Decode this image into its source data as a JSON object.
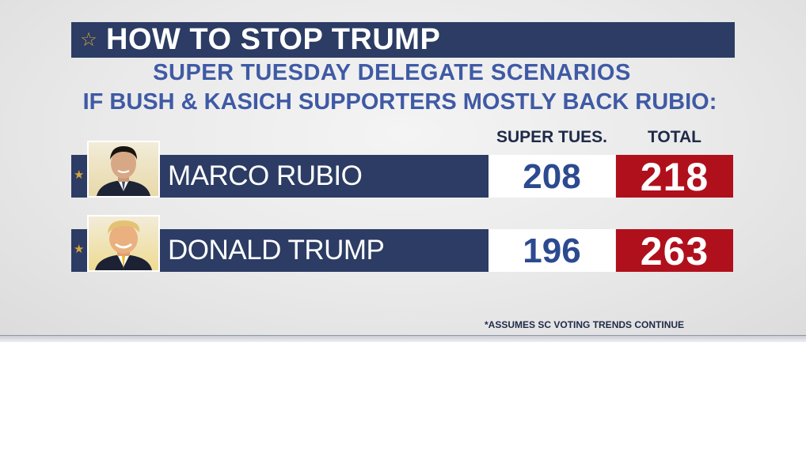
{
  "graphic": {
    "title": "HOW TO STOP TRUMP",
    "title_icon": "star-outline-icon",
    "subtitle": "SUPER TUESDAY DELEGATE SCENARIOS",
    "scenario": "IF BUSH & KASICH SUPPORTERS MOSTLY BACK RUBIO:",
    "columns": {
      "super_tues": "SUPER TUES.",
      "total": "TOTAL"
    },
    "candidates": [
      {
        "name": "MARCO RUBIO",
        "super_tues": "208",
        "total": "218"
      },
      {
        "name": "DONALD TRUMP",
        "super_tues": "196",
        "total": "263"
      }
    ],
    "footnote": "*ASSUMES SC VOTING TRENDS CONTINUE",
    "colors": {
      "navy": "#2c3c64",
      "subtitle_blue": "#3f5aa5",
      "red": "#b0101c",
      "gold": "#d6a53a"
    }
  }
}
